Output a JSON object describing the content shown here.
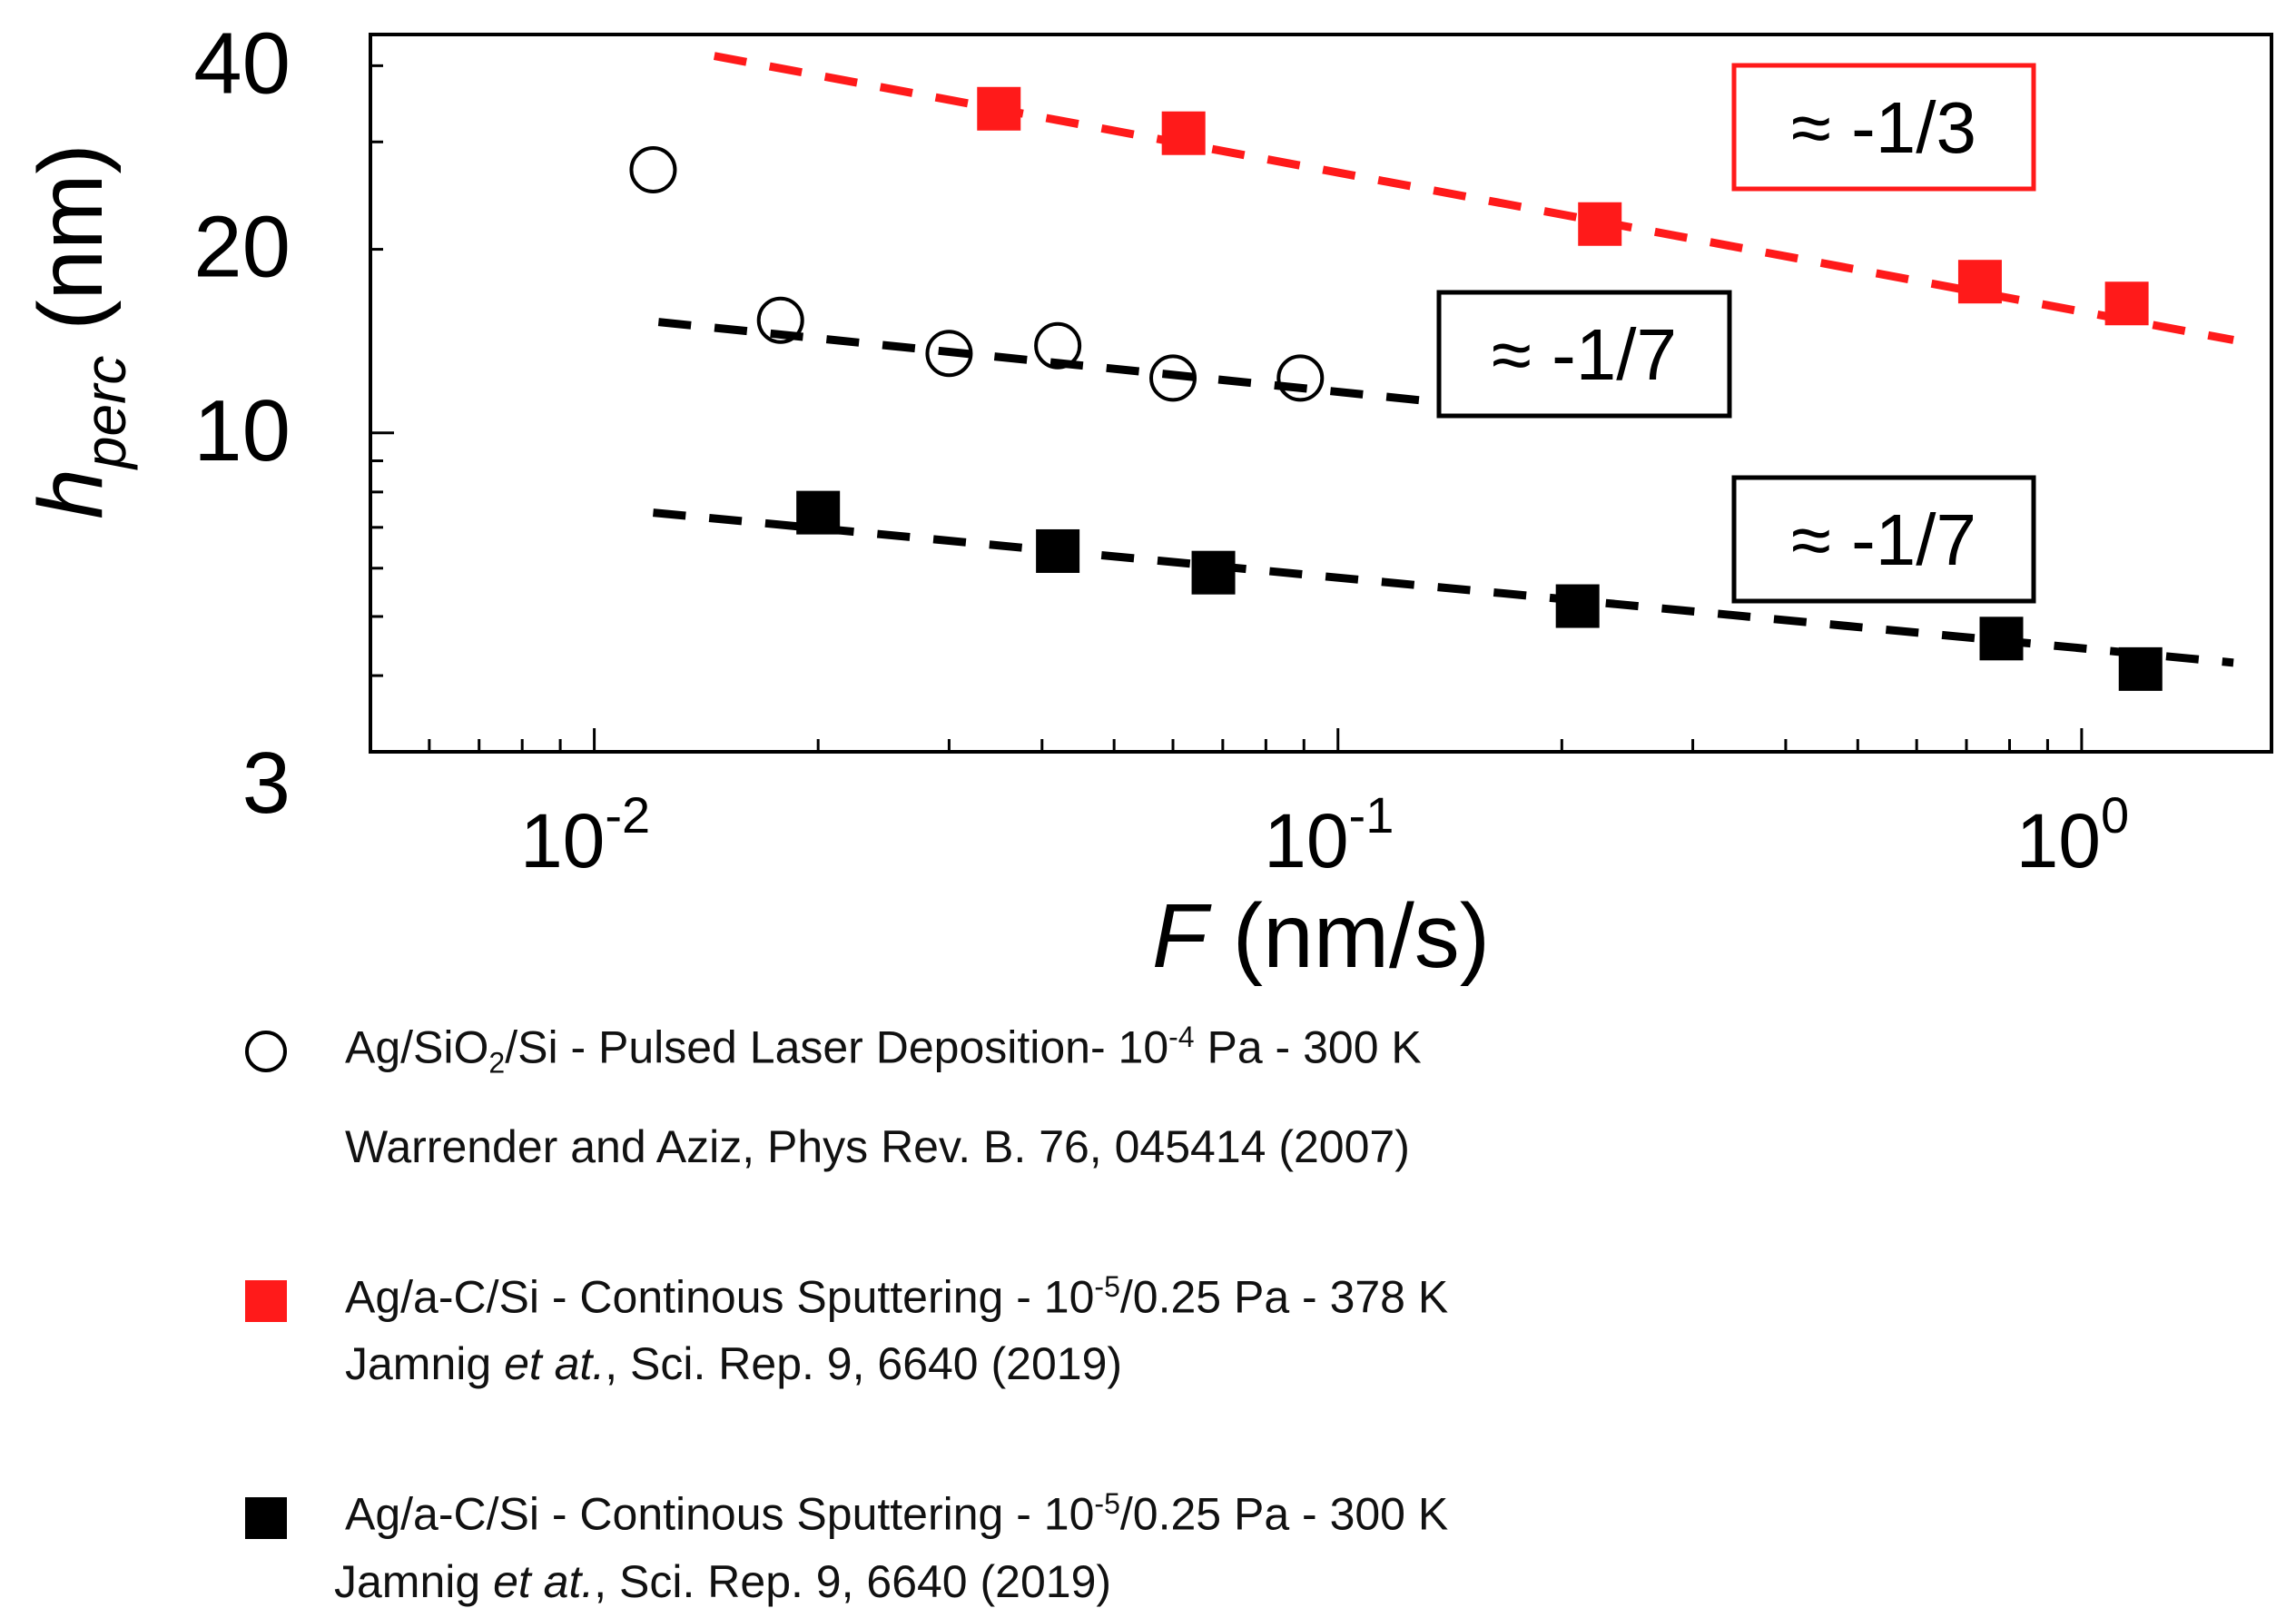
{
  "chart_data": {
    "type": "scatter",
    "xscale": "log",
    "yscale": "log",
    "xlim": [
      0.005,
      1.8
    ],
    "ylim": [
      3,
      45
    ],
    "x_ticks": [
      {
        "value": 0.01,
        "base": "10",
        "exp": "-2"
      },
      {
        "value": 0.1,
        "base": "10",
        "exp": "-1"
      },
      {
        "value": 1,
        "base": "10",
        "exp": "0"
      }
    ],
    "y_ticks": [
      {
        "value": 40,
        "label": "40"
      },
      {
        "value": 20,
        "label": "20"
      },
      {
        "value": 10,
        "label": "10"
      },
      {
        "value": 3,
        "label": "3"
      }
    ],
    "xlabel": {
      "symbol": "F",
      "unit": "(nm/s)"
    },
    "ylabel": {
      "symbol": "h",
      "subscript": "perc",
      "unit": "(nm)"
    },
    "series": [
      {
        "name": "Ag/SiO2/Si - Pulsed Laser Deposition",
        "marker": "open-circle",
        "color": "#000000",
        "x": [
          0.012,
          0.0178,
          0.03,
          0.042,
          0.06,
          0.089
        ],
        "y": [
          27,
          15.3,
          13.5,
          13.9,
          12.3,
          12.3
        ],
        "fit": {
          "x": [
            0.0122,
            0.13
          ],
          "y": [
            15.2,
            11.3
          ],
          "color": "#000000",
          "slope_label": "≈ -1/7"
        }
      },
      {
        "name": "Ag/a-C/Si - Continous Sputtering - 378 K",
        "marker": "square",
        "color": "#ff1a1a",
        "x": [
          0.035,
          0.062,
          0.225,
          0.73,
          1.15
        ],
        "y": [
          34,
          31,
          22,
          17.7,
          16.3
        ],
        "fit": {
          "x": [
            0.0145,
            1.6
          ],
          "y": [
            41.5,
            14.2
          ],
          "color": "#ff1a1a",
          "slope_label": "≈ -1/3"
        }
      },
      {
        "name": "Ag/a-C/Si - Continous Sputtering - 300 K",
        "marker": "square",
        "color": "#000000",
        "x": [
          0.02,
          0.042,
          0.068,
          0.21,
          0.78,
          1.2
        ],
        "y": [
          7.4,
          6.4,
          5.9,
          5.2,
          4.6,
          4.1
        ],
        "fit": {
          "x": [
            0.012,
            1.6
          ],
          "y": [
            7.4,
            4.2
          ],
          "color": "#000000",
          "slope_label": "≈ -1/7"
        }
      }
    ],
    "legend": [
      {
        "marker": "open-circle",
        "line1": {
          "a": "Ag/SiO",
          "sub": "2",
          "b": "/Si - Pulsed Laser Deposition- 10",
          "sup": "-4",
          "c": " Pa - 300 K"
        },
        "line2": {
          "pre": "Warrender and Aziz",
          "ital": "",
          "post": ", Phys Rev. B. 76, 045414 (2007)"
        }
      },
      {
        "marker": "red-square",
        "line1": {
          "a": "Ag/a-C/Si - Continous Sputtering - 10",
          "sup": "-5",
          "c": "/0.25 Pa - 378 K"
        },
        "line2": {
          "pre": "Jamnig ",
          "ital": "et at.",
          "post": ", Sci. Rep. 9, 6640 (2019)"
        }
      },
      {
        "marker": "black-square",
        "line1": {
          "a": "Ag/a-C/Si  - Continous Sputtering - 10",
          "sup": "-5",
          "c": "/0.25 Pa - 300 K"
        },
        "line2": {
          "pre": "Jamnig ",
          "ital": "et at.",
          "post": ", Sci. Rep. 9, 6640 (2019)"
        }
      }
    ]
  }
}
